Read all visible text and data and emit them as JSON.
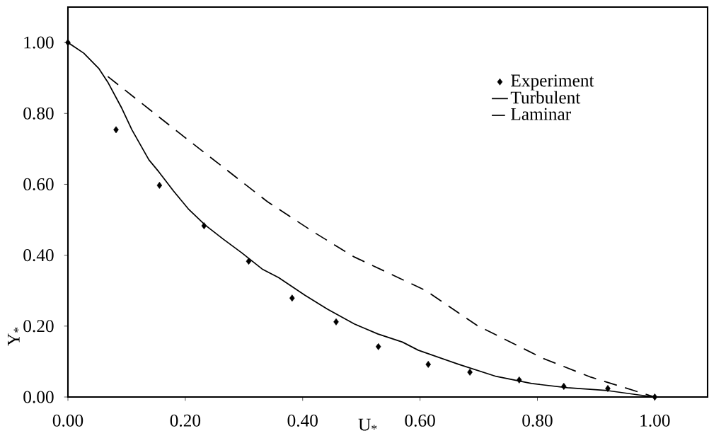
{
  "chart_data": {
    "type": "line",
    "xlabel": "U$_{*}$",
    "ylabel": "Y$_{*}$",
    "xlim": [
      0,
      1.09
    ],
    "ylim": [
      0,
      1.1
    ],
    "xticks": [
      {
        "value": 0,
        "label": "0.00"
      },
      {
        "value": 0.2,
        "label": "0.20"
      },
      {
        "value": 0.4,
        "label": "0.40"
      },
      {
        "value": 0.6,
        "label": "0.60"
      },
      {
        "value": 0.8,
        "label": "0.80"
      },
      {
        "value": 1,
        "label": "1.00"
      }
    ],
    "yticks": [
      {
        "value": 0,
        "label": "0.00"
      },
      {
        "value": 0.2,
        "label": "0.20"
      },
      {
        "value": 0.4,
        "label": "0.40"
      },
      {
        "value": 0.6,
        "label": "0.60"
      },
      {
        "value": 0.8,
        "label": "0.80"
      },
      {
        "value": 1,
        "label": "1.00"
      }
    ],
    "legend": "top right",
    "grid": false,
    "series": [
      {
        "name": "Experiment",
        "type": "scatter",
        "marker": "diamond",
        "color": "#000000",
        "x": [
          0,
          0.082,
          0.156,
          0.232,
          0.308,
          0.382,
          0.457,
          0.529,
          0.614,
          0.685,
          0.769,
          0.845,
          0.92,
          1.0
        ],
        "values": [
          1.0,
          0.754,
          0.597,
          0.483,
          0.383,
          0.279,
          0.212,
          0.142,
          0.092,
          0.07,
          0.048,
          0.03,
          0.024,
          0.0
        ]
      },
      {
        "name": "Turbulent",
        "line_style": "solid",
        "color": "#000000",
        "x": [
          0,
          0.027,
          0.053,
          0.068,
          0.092,
          0.109,
          0.138,
          0.155,
          0.18,
          0.205,
          0.234,
          0.265,
          0.296,
          0.331,
          0.359,
          0.404,
          0.442,
          0.488,
          0.528,
          0.57,
          0.597,
          0.666,
          0.73,
          0.79,
          0.851,
          0.92,
          0.972,
          1.0
        ],
        "values": [
          1.0,
          0.97,
          0.926,
          0.888,
          0.814,
          0.754,
          0.669,
          0.635,
          0.581,
          0.531,
          0.485,
          0.445,
          0.407,
          0.361,
          0.337,
          0.287,
          0.248,
          0.206,
          0.178,
          0.155,
          0.132,
          0.092,
          0.058,
          0.038,
          0.026,
          0.018,
          0.006,
          0.0
        ]
      },
      {
        "name": "Laminar",
        "line_style": "dashed",
        "color": "#000000",
        "x": [
          0.068,
          0.198,
          0.34,
          0.419,
          0.488,
          0.609,
          0.697,
          0.811,
          0.891,
          1.0
        ],
        "values": [
          0.904,
          0.734,
          0.551,
          0.465,
          0.395,
          0.301,
          0.202,
          0.108,
          0.056,
          0.0
        ]
      }
    ]
  }
}
